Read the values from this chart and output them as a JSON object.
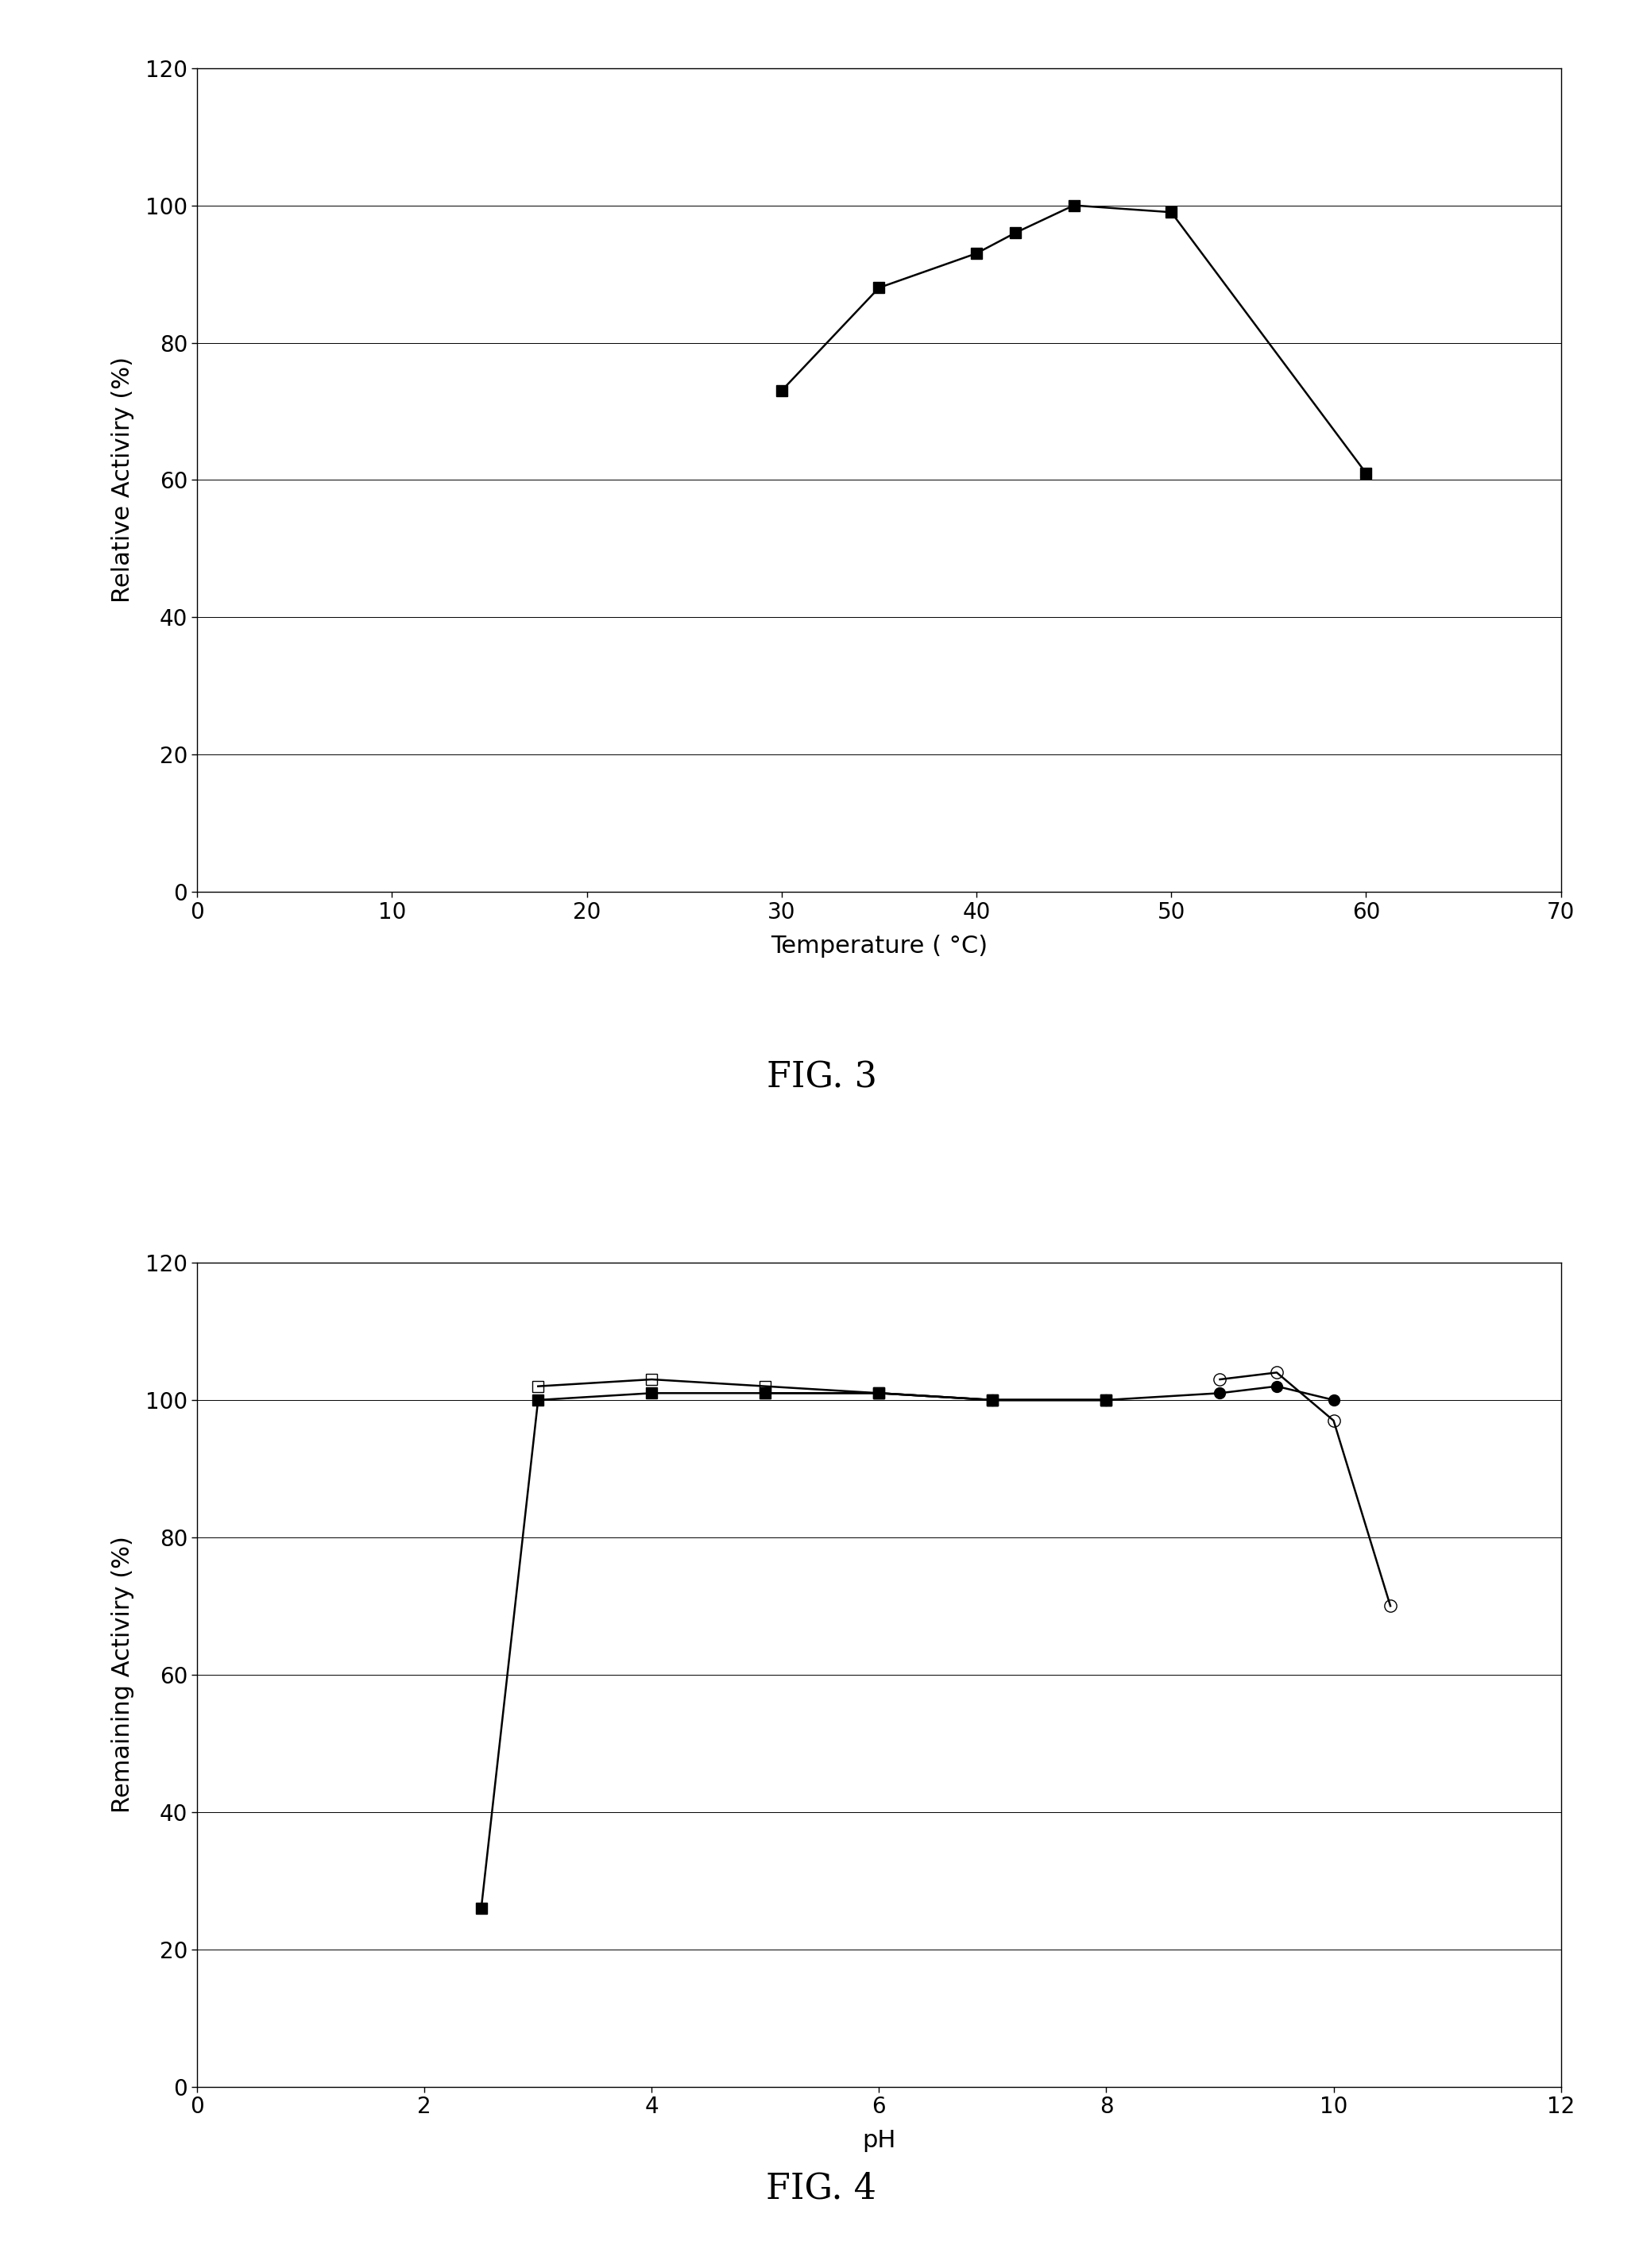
{
  "fig3": {
    "title": "FIG. 3",
    "xlabel": "Temperature ( °C)",
    "ylabel": "Relative Activiry (%)",
    "xlim": [
      0,
      70
    ],
    "ylim": [
      0,
      120
    ],
    "xticks": [
      0,
      10,
      20,
      30,
      40,
      50,
      60,
      70
    ],
    "yticks": [
      0,
      20,
      40,
      60,
      80,
      100,
      120
    ],
    "x": [
      30,
      35,
      40,
      42,
      45,
      50,
      60
    ],
    "y": [
      73,
      88,
      93,
      96,
      100,
      99,
      61
    ],
    "color": "#000000",
    "marker": "s",
    "markersize": 10,
    "linewidth": 1.8
  },
  "fig4": {
    "title": "FIG. 4",
    "xlabel": "pH",
    "ylabel": "Remaining Activiry (%)",
    "xlim": [
      0,
      12
    ],
    "ylim": [
      0,
      120
    ],
    "xticks": [
      0,
      2,
      4,
      6,
      8,
      10,
      12
    ],
    "yticks": [
      0,
      20,
      40,
      60,
      80,
      100,
      120
    ],
    "series": [
      {
        "x": [
          2.5,
          3.0,
          4.0,
          5.0,
          6.0,
          7.0,
          8.0
        ],
        "y": [
          26,
          100,
          101,
          101,
          101,
          100,
          100
        ],
        "color": "#000000",
        "marker": "s",
        "fillstyle": "full",
        "markersize": 10,
        "linewidth": 1.8,
        "linestyle": "-"
      },
      {
        "x": [
          3.0,
          4.0,
          5.0,
          6.0,
          7.0,
          8.0
        ],
        "y": [
          102,
          103,
          102,
          101,
          100,
          100
        ],
        "color": "#000000",
        "marker": "s",
        "fillstyle": "none",
        "markersize": 10,
        "linewidth": 1.8,
        "linestyle": "-"
      },
      {
        "x": [
          5.0,
          6.0,
          7.0,
          8.0
        ],
        "y": [
          101,
          101,
          100,
          100
        ],
        "color": "#000000",
        "marker": "^",
        "fillstyle": "none",
        "markersize": 10,
        "linewidth": 1.8,
        "linestyle": "-"
      },
      {
        "x": [
          7.0,
          8.0,
          9.0,
          9.5,
          10.0
        ],
        "y": [
          100,
          100,
          101,
          102,
          100
        ],
        "color": "#000000",
        "marker": "o",
        "fillstyle": "full",
        "markersize": 10,
        "linewidth": 1.8,
        "linestyle": "-"
      },
      {
        "x": [
          9.0,
          9.5,
          10.0,
          10.5
        ],
        "y": [
          103,
          104,
          97,
          70
        ],
        "color": "#000000",
        "marker": "o",
        "fillstyle": "none",
        "markersize": 11,
        "linewidth": 1.8,
        "linestyle": "-"
      }
    ]
  },
  "background_color": "#ffffff",
  "title_fontsize": 32,
  "label_fontsize": 22,
  "tick_fontsize": 20
}
